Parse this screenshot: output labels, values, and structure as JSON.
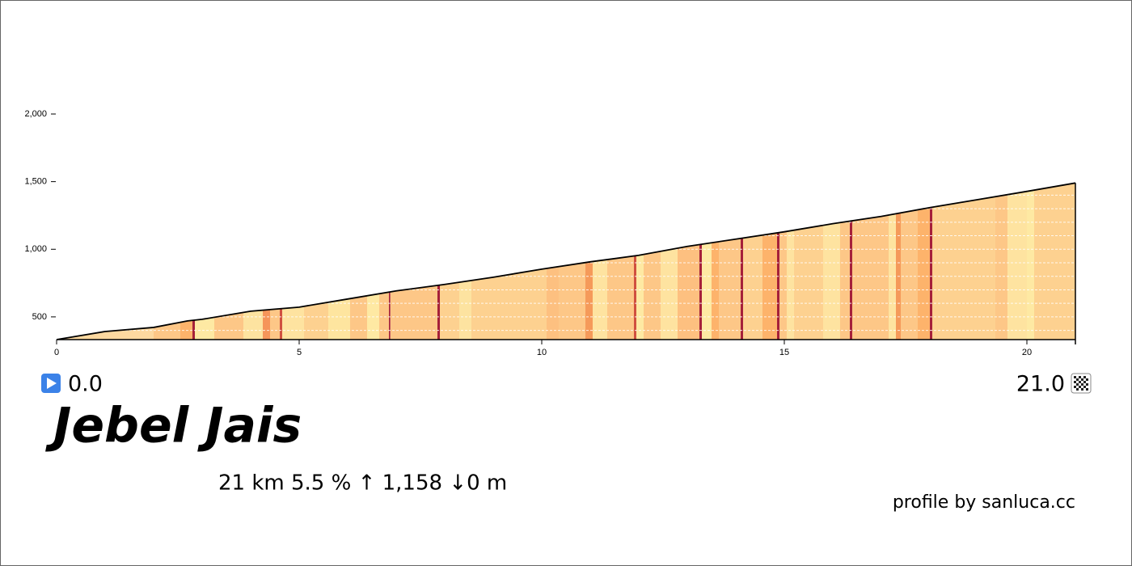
{
  "chart_data": {
    "type": "area",
    "title": "Jebel Jais",
    "start_label": "0.0",
    "end_label": "21.0",
    "stats": "21 km 5.5 %  ↑ 1,158 ↓0 m",
    "credit": "profile by sanluca.cc",
    "x": [
      0,
      1,
      2,
      2.7,
      3,
      4,
      5,
      6,
      7,
      8,
      9,
      10,
      11,
      12,
      13,
      14,
      15,
      16,
      17,
      18,
      19,
      20,
      21
    ],
    "y": [
      332,
      392,
      422,
      470,
      482,
      542,
      572,
      632,
      692,
      740,
      793,
      853,
      907,
      955,
      1021,
      1075,
      1129,
      1189,
      1243,
      1308,
      1368,
      1428,
      1490
    ],
    "band_edges": [
      0,
      2.0,
      2.55,
      2.8,
      2.85,
      3.25,
      3.85,
      4.25,
      4.4,
      4.6,
      4.65,
      5.1,
      5.6,
      6.05,
      6.4,
      6.65,
      6.85,
      6.88,
      7.85,
      7.9,
      8.3,
      8.55,
      10.1,
      10.35,
      10.9,
      11.05,
      11.35,
      11.9,
      11.95,
      12.1,
      12.45,
      12.8,
      13.25,
      13.3,
      13.5,
      13.65,
      14.1,
      14.15,
      14.55,
      14.85,
      14.9,
      15.05,
      15.2,
      15.8,
      16.15,
      16.35,
      16.4,
      17.15,
      17.3,
      17.4,
      17.75,
      18.0,
      18.05,
      19.35,
      19.6,
      20.0,
      20.15,
      21
    ],
    "band_colors": [
      "#fdd9a0",
      "#fdc787",
      "#fdb36b",
      "#a5203a",
      "#fee9a3",
      "#fdc787",
      "#fde3a0",
      "#f5955a",
      "#fdc787",
      "#d05040",
      "#fee3a0",
      "#fdd190",
      "#fee59f",
      "#fdc787",
      "#fee9a3",
      "#fdc787",
      "#a5203a",
      "#fdc787",
      "#a5203a",
      "#fdd190",
      "#fde3a0",
      "#fdd190",
      "#fdc080",
      "#fdc787",
      "#f59a5a",
      "#fee3a0",
      "#fdc787",
      "#d05040",
      "#fee9a3",
      "#fdc787",
      "#fee3a0",
      "#fdc080",
      "#a5203a",
      "#fee9a3",
      "#fdb36b",
      "#fdc787",
      "#a5203a",
      "#fdd190",
      "#fdb36b",
      "#a5203a",
      "#fdc787",
      "#fee3a0",
      "#fdd190",
      "#fee3a0",
      "#fdc787",
      "#a5203a",
      "#fdc787",
      "#fee3a0",
      "#f59a5a",
      "#fdc787",
      "#fdb36b",
      "#a5203a",
      "#fdd190",
      "#fdc787",
      "#fee3a0",
      "#fee9a3",
      "#fdd190"
    ],
    "xlim": [
      0,
      21
    ],
    "xticks": [
      0,
      5,
      10,
      15,
      20
    ],
    "ylim": [
      332,
      2000
    ],
    "yticks": [
      500,
      {
        "value": 1000,
        "label": "1,000"
      },
      {
        "value": 1500,
        "label": "1,500"
      },
      {
        "value": 2000,
        "label": "2,000"
      }
    ],
    "minor_yticks": [
      400,
      500,
      600,
      700,
      800,
      900,
      1000,
      1100,
      1200,
      1300,
      1400
    ],
    "line_color": "#000000"
  }
}
